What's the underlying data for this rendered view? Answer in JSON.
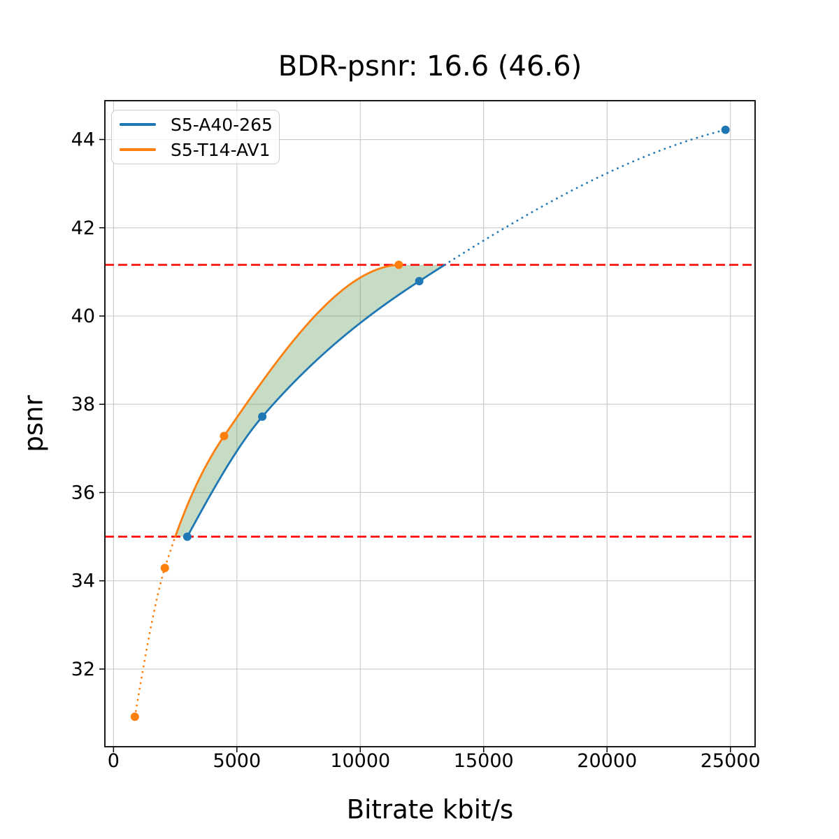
{
  "chart_data": {
    "type": "line",
    "title": "BDR-psnr: 16.6 (46.6)",
    "xlabel": "Bitrate kbit/s",
    "ylabel": "psnr",
    "xlim": [
      -350,
      26000
    ],
    "ylim": [
      30.24,
      44.88
    ],
    "xticks": [
      0,
      5000,
      10000,
      15000,
      20000,
      25000
    ],
    "yticks": [
      32,
      34,
      36,
      38,
      40,
      42,
      44
    ],
    "grid": true,
    "legend_position": "upper-left",
    "series": [
      {
        "name": "S5-A40-265",
        "color": "#1f77b4",
        "x": [
          2990,
          6030,
          12390,
          24800
        ],
        "y": [
          35.0,
          37.72,
          40.79,
          44.22
        ]
      },
      {
        "name": "S5-T14-AV1",
        "color": "#ff7f0e",
        "x": [
          865,
          2080,
          4480,
          11560
        ],
        "y": [
          30.92,
          34.29,
          37.28,
          41.16
        ]
      }
    ],
    "overlap_hlines": {
      "color": "#ff0000",
      "style": "dashed",
      "values": [
        35.0,
        41.16
      ]
    },
    "shaded_region": {
      "fill": "rgba(70,140,60,0.30)",
      "psnr_range": [
        35.0,
        41.16
      ]
    }
  }
}
